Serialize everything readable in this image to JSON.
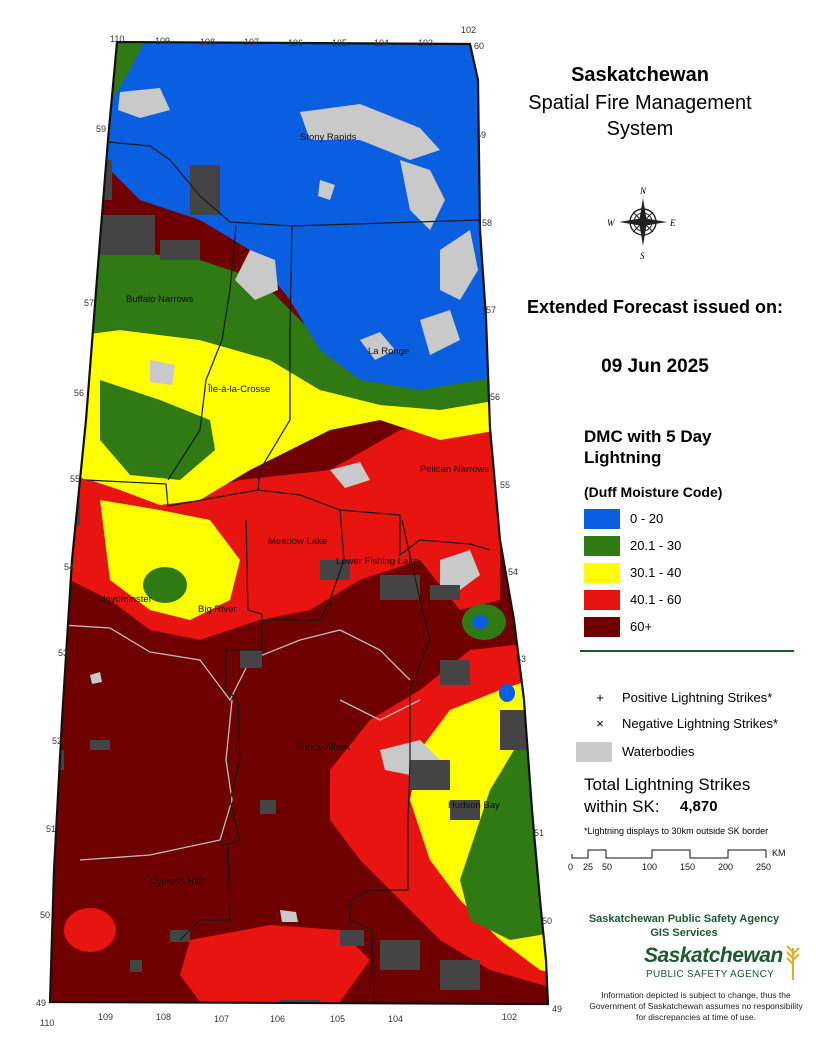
{
  "title": {
    "line1": "Saskatchewan",
    "line2": "Spatial Fire Management System"
  },
  "forecast": {
    "line1": "Extended Forecast issued on:",
    "date": "09 Jun 2025"
  },
  "legend": {
    "title": "DMC with 5 Day Lightning",
    "subtitle": "(Duff Moisture Code)",
    "classes": [
      {
        "label": "0 - 20",
        "color": "#0a5fe0"
      },
      {
        "label": "20.1 - 30",
        "color": "#2f7a12"
      },
      {
        "label": "30.1 - 40",
        "color": "#ffff00"
      },
      {
        "label": "40.1 - 60",
        "color": "#e8140f"
      },
      {
        "label": "60+",
        "color": "#6f0000"
      }
    ],
    "symbols": [
      {
        "marker": "+",
        "label": "Positive Lightning Strikes*"
      },
      {
        "marker": "×",
        "label": "Negative Lightning Strikes*"
      },
      {
        "marker": "",
        "label": "Waterbodies"
      }
    ]
  },
  "totals": {
    "label": "Total Lightning Strikes within SK:",
    "value": "4,870",
    "note": "*Lightning displays to 30km outside SK border"
  },
  "scale": {
    "ticks": [
      "0",
      "25",
      "50",
      "100",
      "150",
      "200",
      "250"
    ],
    "unit": "KM"
  },
  "compass": {
    "n": "N",
    "s": "S",
    "e": "E",
    "w": "W"
  },
  "agency": {
    "line1": "Saskatchewan Public Safety Agency",
    "line2": "GIS Services",
    "logo_main": "Saskatchewan",
    "logo_sub": "PUBLIC SAFETY AGENCY"
  },
  "disclaimer": "Information depicted is subject to change, thus the Government of Saskatchewan assumes no responsibility for discrepancies at time of use.",
  "map": {
    "longitudes_top": [
      "110",
      "109",
      "108",
      "107",
      "106",
      "105",
      "104",
      "103",
      "102"
    ],
    "longitudes_bottom": [
      "110",
      "109",
      "108",
      "107",
      "106",
      "105",
      "104",
      "102"
    ],
    "latitudes_left": [
      "59",
      "57",
      "56",
      "55",
      "54",
      "53",
      "52",
      "51",
      "50",
      "49"
    ],
    "latitudes_right": [
      "60",
      "59",
      "58",
      "57",
      "56",
      "55",
      "54",
      "53",
      "51",
      "50",
      "49"
    ],
    "places": [
      "Stony Rapids",
      "Buffalo Narrows",
      "La Ronge",
      "Île-à-la-Crosse",
      "Pelican Narrows",
      "Meadow Lake",
      "Lower Fishing Lake",
      "Lloydminster",
      "Big River",
      "Prince Albert",
      "Hudson Bay",
      "Cypress Hills"
    ]
  },
  "colors": {
    "water": "#c9c9c9",
    "boundary": "#1a1a1a",
    "strike": "#444444",
    "agency_green": "#1d5a2e"
  }
}
